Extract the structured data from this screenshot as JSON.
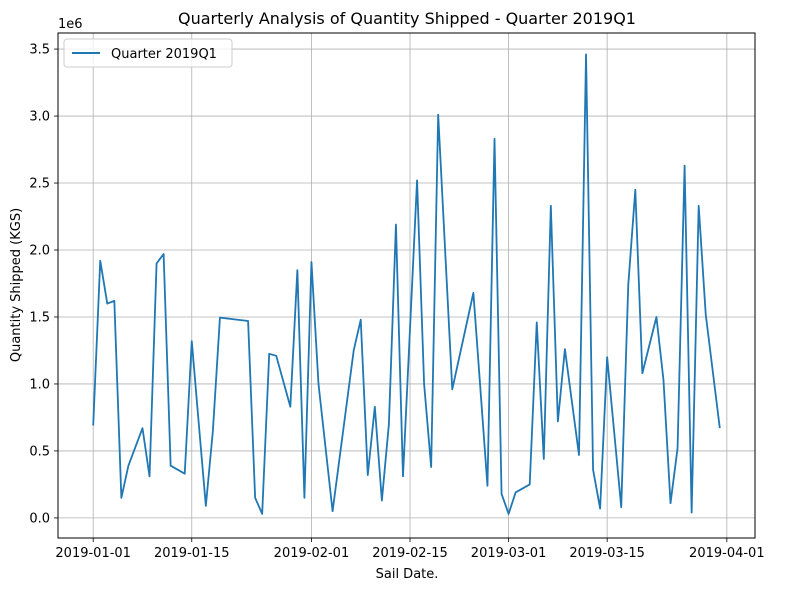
{
  "chart_data": {
    "type": "line",
    "title": "Quarterly Analysis of Quantity Shipped - Quarter 2019Q1",
    "xlabel": "Sail Date.",
    "ylabel": "Quantity Shipped (KGS)",
    "y_offset_label": "1e6",
    "grid": true,
    "legend_position": "top-left",
    "line_color": "#1f77b4",
    "xlim": [
      "2018-12-27",
      "2019-04-05"
    ],
    "ylim": [
      -150000,
      3620000
    ],
    "x_ticks": [
      {
        "date": "2019-01-01",
        "label": "2019-01-01"
      },
      {
        "date": "2019-01-15",
        "label": "2019-01-15"
      },
      {
        "date": "2019-02-01",
        "label": "2019-02-01"
      },
      {
        "date": "2019-02-15",
        "label": "2019-02-15"
      },
      {
        "date": "2019-03-01",
        "label": "2019-03-01"
      },
      {
        "date": "2019-03-15",
        "label": "2019-03-15"
      },
      {
        "date": "2019-04-01",
        "label": "2019-04-01"
      }
    ],
    "y_ticks": [
      {
        "value": 0,
        "label": "0.0"
      },
      {
        "value": 500000,
        "label": "0.5"
      },
      {
        "value": 1000000,
        "label": "1.0"
      },
      {
        "value": 1500000,
        "label": "1.5"
      },
      {
        "value": 2000000,
        "label": "2.0"
      },
      {
        "value": 2500000,
        "label": "2.5"
      },
      {
        "value": 3000000,
        "label": "3.0"
      },
      {
        "value": 3500000,
        "label": "3.5"
      }
    ],
    "series": [
      {
        "name": "Quarter 2019Q1",
        "x": [
          "2019-01-01",
          "2019-01-02",
          "2019-01-03",
          "2019-01-04",
          "2019-01-05",
          "2019-01-06",
          "2019-01-08",
          "2019-01-09",
          "2019-01-10",
          "2019-01-11",
          "2019-01-12",
          "2019-01-14",
          "2019-01-15",
          "2019-01-16",
          "2019-01-17",
          "2019-01-18",
          "2019-01-19",
          "2019-01-23",
          "2019-01-24",
          "2019-01-25",
          "2019-01-26",
          "2019-01-27",
          "2019-01-29",
          "2019-01-30",
          "2019-01-31",
          "2019-02-01",
          "2019-02-02",
          "2019-02-04",
          "2019-02-07",
          "2019-02-08",
          "2019-02-09",
          "2019-02-10",
          "2019-02-11",
          "2019-02-12",
          "2019-02-13",
          "2019-02-14",
          "2019-02-16",
          "2019-02-17",
          "2019-02-18",
          "2019-02-19",
          "2019-02-21",
          "2019-02-24",
          "2019-02-26",
          "2019-02-27",
          "2019-02-28",
          "2019-03-01",
          "2019-03-02",
          "2019-03-04",
          "2019-03-05",
          "2019-03-06",
          "2019-03-07",
          "2019-03-08",
          "2019-03-09",
          "2019-03-11",
          "2019-03-12",
          "2019-03-13",
          "2019-03-14",
          "2019-03-15",
          "2019-03-17",
          "2019-03-18",
          "2019-03-19",
          "2019-03-20",
          "2019-03-22",
          "2019-03-23",
          "2019-03-24",
          "2019-03-25",
          "2019-03-26",
          "2019-03-27",
          "2019-03-28",
          "2019-03-29",
          "2019-03-31"
        ],
        "y": [
          690000,
          1920000,
          1600000,
          1620000,
          150000,
          390000,
          670000,
          310000,
          1900000,
          1970000,
          390000,
          330000,
          1320000,
          700000,
          90000,
          650000,
          1495000,
          1470000,
          150000,
          30000,
          1225000,
          1210000,
          830000,
          1850000,
          150000,
          1910000,
          1000000,
          50000,
          1250000,
          1480000,
          320000,
          830000,
          130000,
          700000,
          2190000,
          310000,
          2520000,
          1000000,
          380000,
          3010000,
          960000,
          1680000,
          240000,
          2830000,
          180000,
          30000,
          190000,
          250000,
          1460000,
          440000,
          2330000,
          720000,
          1260000,
          470000,
          3460000,
          360000,
          70000,
          1200000,
          80000,
          1740000,
          2450000,
          1080000,
          1500000,
          1030000,
          110000,
          520000,
          2630000,
          40000,
          2330000,
          1520000,
          670000
        ]
      }
    ]
  }
}
